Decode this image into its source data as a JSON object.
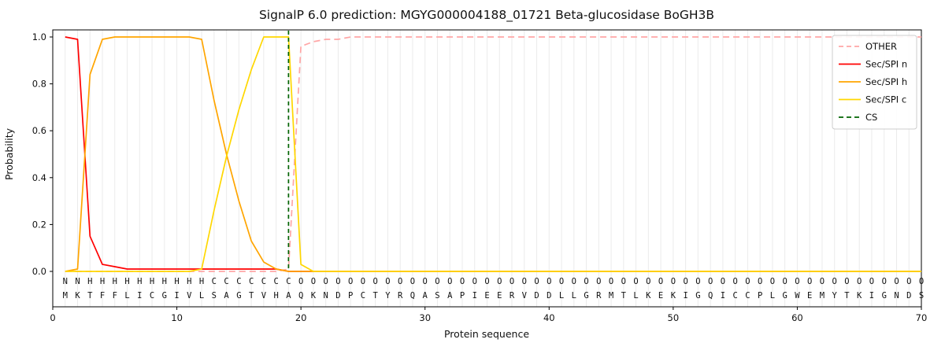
{
  "chart_data": {
    "type": "line",
    "title": "SignalP 6.0 prediction: MGYG000004188_01721 Beta-glucosidase BoGH3B",
    "xlabel": "Protein sequence",
    "ylabel": "Probability",
    "xlim": [
      0,
      70
    ],
    "ylim": [
      0,
      1
    ],
    "grid": "vertical-per-residue",
    "legend_position": "upper right",
    "xticks": [
      0,
      10,
      20,
      30,
      40,
      50,
      60,
      70
    ],
    "yticks": [
      0,
      0.2,
      0.4,
      0.6,
      0.8,
      1.0
    ],
    "sequence": "MKTFFLICGIVLSAGTVHAQKNDPCTYRQASAPIEERVDDLLGRMTLKEKIGQICCPLGWEMYTKIGNDS",
    "region_labels": "NNHHHHHHHHHHCCCCCCCOOOOOOOOOOOOOOOOOOOOOOOOOOOOOOOOOOOOOOOOOOOOOOOOOOO",
    "cs_position": 19,
    "series": [
      {
        "name": "OTHER",
        "color": "#ffa6a6",
        "dash": true,
        "values": [
          0,
          0,
          0,
          0,
          0,
          0,
          0,
          0,
          0,
          0,
          0,
          0,
          0,
          0,
          0,
          0,
          0,
          0,
          0.01,
          0.96,
          0.98,
          0.99,
          0.99,
          1,
          1,
          1,
          1,
          1,
          1,
          1,
          1,
          1,
          1,
          1,
          1,
          1,
          1,
          1,
          1,
          1,
          1,
          1,
          1,
          1,
          1,
          1,
          1,
          1,
          1,
          1,
          1,
          1,
          1,
          1,
          1,
          1,
          1,
          1,
          1,
          1,
          1,
          1,
          1,
          1,
          1,
          1,
          1,
          1,
          1,
          1
        ]
      },
      {
        "name": "Sec/SPI n",
        "color": "#ff0000",
        "dash": false,
        "values": [
          1,
          0.99,
          0.15,
          0.03,
          0.02,
          0.01,
          0.01,
          0.01,
          0.01,
          0.01,
          0.01,
          0.01,
          0.01,
          0.01,
          0.01,
          0.01,
          0.01,
          0.01,
          0,
          0,
          0,
          0,
          0,
          0,
          0,
          0,
          0,
          0,
          0,
          0,
          0,
          0,
          0,
          0,
          0,
          0,
          0,
          0,
          0,
          0,
          0,
          0,
          0,
          0,
          0,
          0,
          0,
          0,
          0,
          0,
          0,
          0,
          0,
          0,
          0,
          0,
          0,
          0,
          0,
          0,
          0,
          0,
          0,
          0,
          0,
          0,
          0,
          0,
          0,
          0
        ]
      },
      {
        "name": "Sec/SPI h",
        "color": "#ffa500",
        "dash": false,
        "values": [
          0,
          0.01,
          0.84,
          0.99,
          1,
          1,
          1,
          1,
          1,
          1,
          1,
          0.99,
          0.73,
          0.5,
          0.3,
          0.13,
          0.04,
          0.01,
          0,
          0,
          0,
          0,
          0,
          0,
          0,
          0,
          0,
          0,
          0,
          0,
          0,
          0,
          0,
          0,
          0,
          0,
          0,
          0,
          0,
          0,
          0,
          0,
          0,
          0,
          0,
          0,
          0,
          0,
          0,
          0,
          0,
          0,
          0,
          0,
          0,
          0,
          0,
          0,
          0,
          0,
          0,
          0,
          0,
          0,
          0,
          0,
          0,
          0,
          0,
          0
        ]
      },
      {
        "name": "Sec/SPI c",
        "color": "#ffd700",
        "dash": false,
        "values": [
          0,
          0,
          0,
          0,
          0,
          0,
          0,
          0,
          0,
          0,
          0,
          0.01,
          0.26,
          0.49,
          0.69,
          0.86,
          1,
          1,
          1,
          0.03,
          0,
          0,
          0,
          0,
          0,
          0,
          0,
          0,
          0,
          0,
          0,
          0,
          0,
          0,
          0,
          0,
          0,
          0,
          0,
          0,
          0,
          0,
          0,
          0,
          0,
          0,
          0,
          0,
          0,
          0,
          0,
          0,
          0,
          0,
          0,
          0,
          0,
          0,
          0,
          0,
          0,
          0,
          0,
          0,
          0,
          0,
          0,
          0,
          0,
          0
        ]
      }
    ],
    "legend": [
      {
        "label": "OTHER",
        "color": "#ffa6a6",
        "dash": true
      },
      {
        "label": "Sec/SPI n",
        "color": "#ff0000",
        "dash": false
      },
      {
        "label": "Sec/SPI h",
        "color": "#ffa500",
        "dash": false
      },
      {
        "label": "Sec/SPI c",
        "color": "#ffd700",
        "dash": false
      },
      {
        "label": "CS",
        "color": "#006400",
        "dash": true
      }
    ],
    "colors": {
      "grid": "#ebebeb",
      "frame": "#000000",
      "cs": "#006400",
      "sequence_text": "#111111",
      "regions": {
        "N": "#ff0000",
        "H": "#ffa500",
        "C": "#ffd700",
        "O": "#b3b3b3"
      }
    }
  }
}
